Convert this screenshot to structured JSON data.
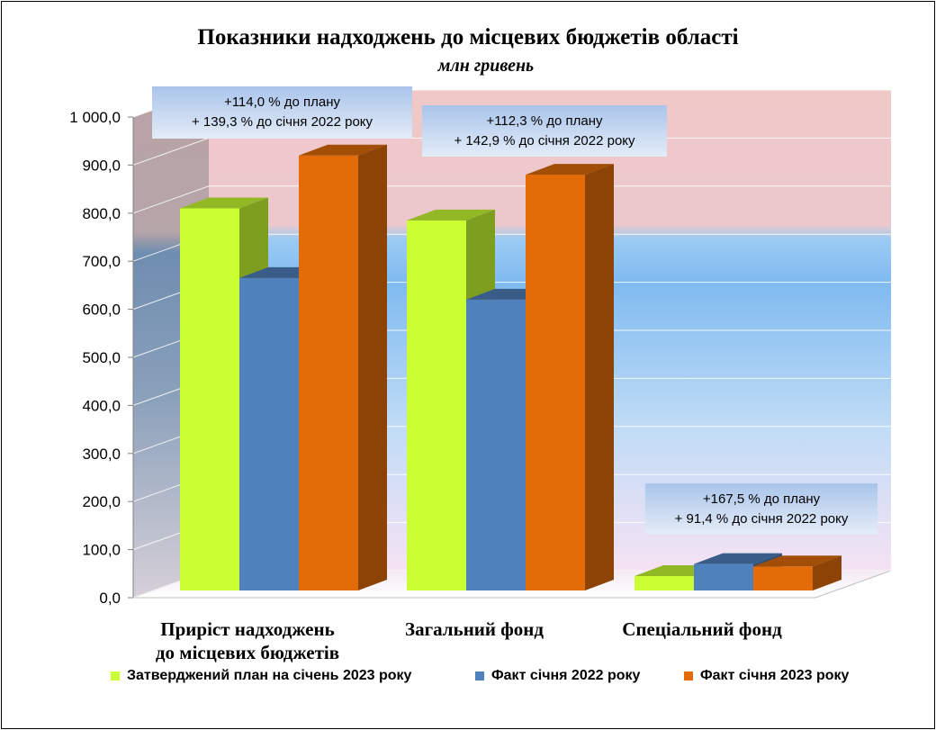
{
  "chart_data": {
    "type": "bar",
    "title": "Показники надходжень до місцевих бюджетів області",
    "subtitle": "млн гривень",
    "categories": [
      "Приріст надходжень до місцевих бюджетів",
      "Загальний фонд",
      "Спеціальний фонд"
    ],
    "series": [
      {
        "name": "Затверджений план на січень 2023 року",
        "color": "#ccff33",
        "values": [
          795,
          770,
          30
        ]
      },
      {
        "name": "Факт січня 2022 року",
        "color": "#4f81bd",
        "values": [
          650,
          605,
          55
        ]
      },
      {
        "name": "Факт січня 2023 року",
        "color": "#e36c09",
        "values": [
          905,
          865,
          50
        ]
      }
    ],
    "ylim": [
      0,
      1000
    ],
    "yticks": [
      "0,0",
      "100,0",
      "200,0",
      "300,0",
      "400,0",
      "500,0",
      "600,0",
      "700,0",
      "800,0",
      "900,0",
      "1 000,0"
    ],
    "grid": true,
    "legend": "bottom",
    "annotations": [
      {
        "line1": "+114,0 % до плану",
        "line2": "+ 139,3 % до  січня 2022 року"
      },
      {
        "line1": "+112,3 % до плану",
        "line2": "+ 142,9 % до січня 2022 року"
      },
      {
        "line1": "+167,5 % до плану",
        "line2": "+ 91,4 % до  січня 2022 року"
      }
    ]
  }
}
